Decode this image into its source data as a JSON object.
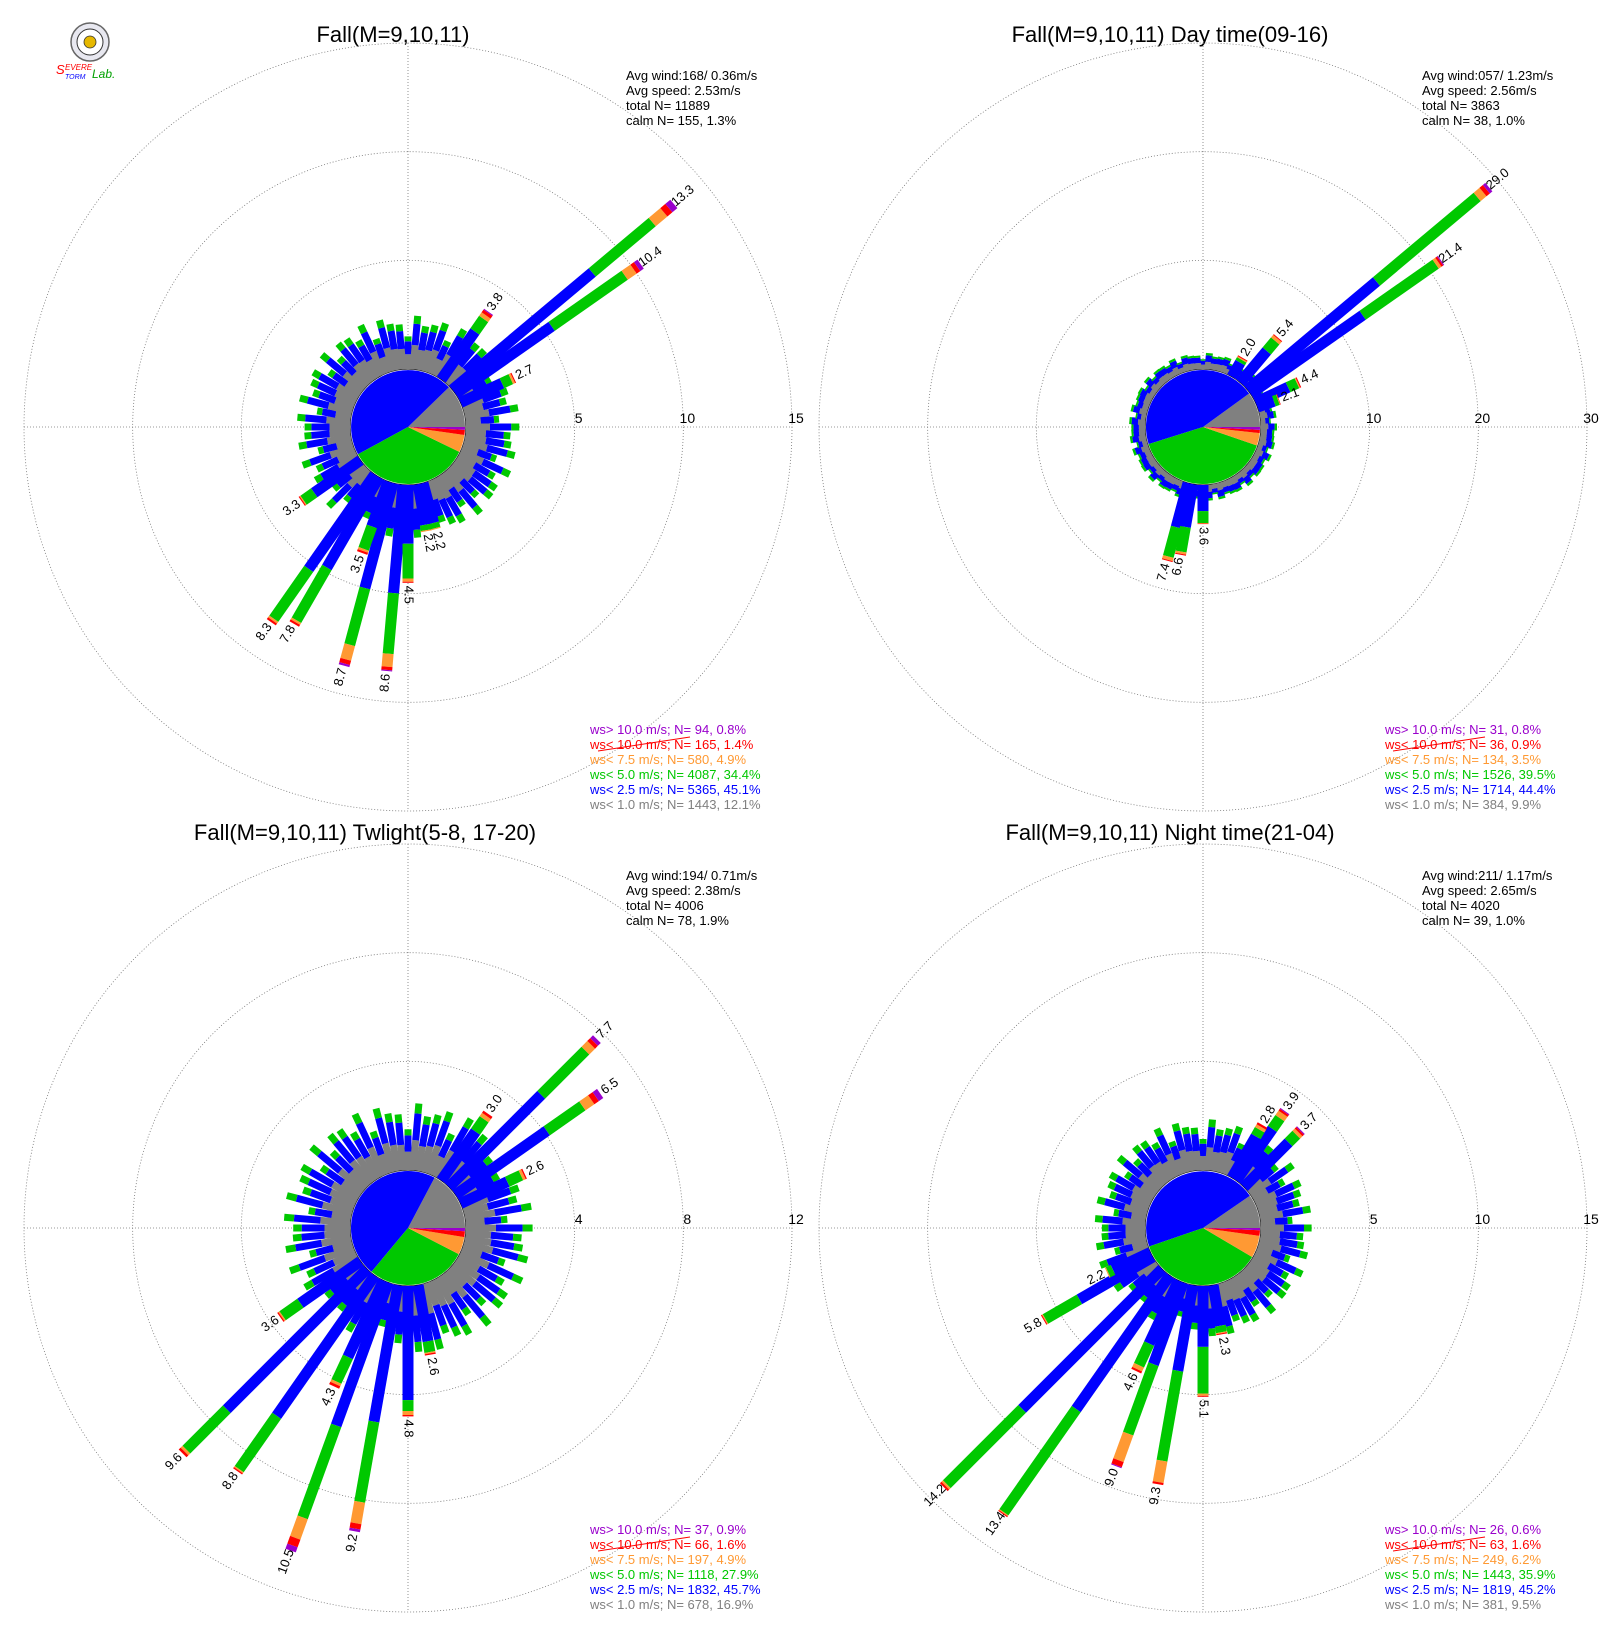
{
  "logo": {
    "text_top": "Severe",
    "text_bottom": "Storm",
    "text_lab": "Lab."
  },
  "colors": {
    "calm": "#808080",
    "b1": "#0000ff",
    "b2": "#00c800",
    "b3": "#ff9933",
    "b4": "#ff0000",
    "b5": "#9900cc",
    "grid": "#777777"
  },
  "chart_data": [
    {
      "type": "windrose",
      "title": "Fall(M=9,10,11)",
      "stats": [
        "Avg wind:168/ 0.36m/s",
        "Avg speed: 2.53m/s",
        "total N=      11889",
        "calm N=     155,   1.3%"
      ],
      "rings": [
        5,
        10,
        15
      ],
      "rmax": 15,
      "legend": [
        {
          "text": "ws> 10.0 m/s; N=    94,  0.8%",
          "color": "#9900cc"
        },
        {
          "text": "ws< 10.0 m/s; N=   165,  1.4%",
          "color": "#ff0000"
        },
        {
          "text": "ws<  7.5 m/s; N=   580,  4.9%",
          "color": "#ff9933"
        },
        {
          "text": "ws<  5.0 m/s; N= 4087, 34.4%",
          "color": "#00c800"
        },
        {
          "text": "ws<  2.5 m/s; N= 5365, 45.1%",
          "color": "#0000ff"
        },
        {
          "text": "ws<  1.0 m/s; N= 1443, 12.1%",
          "color": "#808080"
        }
      ],
      "calm_pie": [
        12.1,
        45.1,
        34.4,
        4.9,
        1.4,
        0.8
      ],
      "petals": [
        {
          "dir": 50,
          "value": 13.3,
          "label": "13.3",
          "b": [
            8.4,
            12.0,
            12.7,
            13.0
          ]
        },
        {
          "dir": 55,
          "value": 10.4,
          "label": "10.4",
          "b": [
            5.4,
            9.5,
            10.0,
            10.2
          ]
        },
        {
          "dir": 35,
          "value": 3.8,
          "label": "3.8",
          "b": [
            2.7,
            3.4,
            3.6,
            3.75
          ]
        },
        {
          "dir": 65,
          "value": 2.7,
          "label": "2.7",
          "b": [
            2.1,
            2.55,
            2.65,
            2.7
          ]
        },
        {
          "dir": 215,
          "value": 8.3,
          "label": "8.3",
          "b": [
            5.3,
            8.1,
            8.2,
            8.3
          ]
        },
        {
          "dir": 210,
          "value": 7.8,
          "label": "7.8",
          "b": [
            4.8,
            7.6,
            7.7,
            7.8
          ]
        },
        {
          "dir": 235,
          "value": 3.3,
          "label": "3.3",
          "b": [
            2.6,
            3.2,
            3.25,
            3.3
          ]
        },
        {
          "dir": 195,
          "value": 8.7,
          "label": "8.7",
          "b": [
            5.0,
            7.7,
            8.4,
            8.6
          ]
        },
        {
          "dir": 185,
          "value": 8.6,
          "label": "8.6",
          "b": [
            5.0,
            7.8,
            8.4,
            8.55
          ]
        },
        {
          "dir": 200,
          "value": 3.5,
          "label": "3.5",
          "b": [
            2.2,
            3.3,
            3.4,
            3.5
          ]
        },
        {
          "dir": 180,
          "value": 4.5,
          "label": "4.5",
          "b": [
            2.7,
            4.3,
            4.45,
            4.5
          ]
        },
        {
          "dir": 170,
          "value": 2.2,
          "label": "2.2",
          "b": [
            1.9,
            2.15,
            2.2,
            2.2
          ]
        },
        {
          "dir": 165,
          "value": 2.2,
          "label": "2.2",
          "b": [
            1.9,
            2.15,
            2.2,
            2.2
          ]
        }
      ],
      "background": 2.0
    },
    {
      "type": "windrose",
      "title": "Fall(M=9,10,11) Day time(09-16)",
      "stats": [
        "Avg wind:057/ 1.23m/s",
        "Avg speed: 2.56m/s",
        "total N=       3863",
        "calm N=      38,   1.0%"
      ],
      "rings": [
        10,
        20,
        30
      ],
      "rmax": 30,
      "legend": [
        {
          "text": "ws> 10.0 m/s; N=    31,  0.8%",
          "color": "#9900cc"
        },
        {
          "text": "ws< 10.0 m/s; N=    36,  0.9%",
          "color": "#ff0000"
        },
        {
          "text": "ws<  7.5 m/s; N=   134,  3.5%",
          "color": "#ff9933"
        },
        {
          "text": "ws<  5.0 m/s; N= 1526, 39.5%",
          "color": "#00c800"
        },
        {
          "text": "ws<  2.5 m/s; N= 1714, 44.4%",
          "color": "#0000ff"
        },
        {
          "text": "ws<  1.0 m/s; N=   384,  9.9%",
          "color": "#808080"
        }
      ],
      "calm_pie": [
        9.9,
        44.4,
        39.5,
        3.5,
        0.9,
        0.8
      ],
      "petals": [
        {
          "dir": 50,
          "value": 29.0,
          "label": "29.0",
          "b": [
            15.5,
            27.6,
            28.3,
            28.7
          ]
        },
        {
          "dir": 55,
          "value": 21.4,
          "label": "21.4",
          "b": [
            12.6,
            20.8,
            21.1,
            21.3
          ]
        },
        {
          "dir": 40,
          "value": 5.4,
          "label": "5.4",
          "b": [
            3.8,
            5.0,
            5.3,
            5.4
          ]
        },
        {
          "dir": 30,
          "value": 2.0,
          "label": "2.0",
          "b": [
            1.5,
            1.8,
            1.9,
            2.0
          ]
        },
        {
          "dir": 65,
          "value": 4.4,
          "label": "4.4",
          "b": [
            3.3,
            4.2,
            4.3,
            4.4
          ]
        },
        {
          "dir": 70,
          "value": 2.1,
          "label": "2.1",
          "b": [
            1.6,
            2.0,
            2.05,
            2.1
          ]
        },
        {
          "dir": 195,
          "value": 7.4,
          "label": "7.4",
          "b": [
            4.2,
            7.0,
            7.3,
            7.4
          ]
        },
        {
          "dir": 190,
          "value": 6.6,
          "label": "6.6",
          "b": [
            4.0,
            6.3,
            6.5,
            6.6
          ]
        },
        {
          "dir": 180,
          "value": 3.6,
          "label": "3.6",
          "b": [
            2.4,
            3.5,
            3.55,
            3.6
          ]
        }
      ],
      "background": 1.2
    },
    {
      "type": "windrose",
      "title": "Fall(M=9,10,11) Twlight(5-8, 17-20)",
      "stats": [
        "Avg wind:194/ 0.71m/s",
        "Avg speed: 2.38m/s",
        "total N=       4006",
        "calm N=      78,   1.9%"
      ],
      "rings": [
        4,
        8,
        12
      ],
      "rmax": 12,
      "legend": [
        {
          "text": "ws> 10.0 m/s; N=    37,  0.9%",
          "color": "#9900cc"
        },
        {
          "text": "ws< 10.0 m/s; N=    66,  1.6%",
          "color": "#ff0000"
        },
        {
          "text": "ws<  7.5 m/s; N=   197,  4.9%",
          "color": "#ff9933"
        },
        {
          "text": "ws<  5.0 m/s; N= 1118, 27.9%",
          "color": "#00c800"
        },
        {
          "text": "ws<  2.5 m/s; N= 1832, 45.7%",
          "color": "#0000ff"
        },
        {
          "text": "ws<  1.0 m/s; N=   678, 16.9%",
          "color": "#808080"
        }
      ],
      "calm_pie": [
        16.9,
        45.7,
        27.9,
        4.9,
        1.6,
        0.9
      ],
      "petals": [
        {
          "dir": 45,
          "value": 7.7,
          "label": "7.7",
          "b": [
            4.8,
            7.1,
            7.4,
            7.55
          ]
        },
        {
          "dir": 55,
          "value": 6.5,
          "label": "6.5",
          "b": [
            4.1,
            5.7,
            6.1,
            6.3
          ]
        },
        {
          "dir": 35,
          "value": 3.0,
          "label": "3.0",
          "b": [
            2.2,
            2.75,
            2.9,
            3.0
          ]
        },
        {
          "dir": 65,
          "value": 2.6,
          "label": "2.6",
          "b": [
            1.9,
            2.45,
            2.55,
            2.6
          ]
        },
        {
          "dir": 225,
          "value": 9.6,
          "label": "9.6",
          "b": [
            7.3,
            9.4,
            9.5,
            9.6
          ]
        },
        {
          "dir": 215,
          "value": 8.8,
          "label": "8.8",
          "b": [
            6.3,
            8.7,
            8.75,
            8.8
          ]
        },
        {
          "dir": 235,
          "value": 3.6,
          "label": "3.6",
          "b": [
            2.7,
            3.5,
            3.55,
            3.6
          ]
        },
        {
          "dir": 200,
          "value": 10.5,
          "label": "10.5",
          "b": [
            5.6,
            9.2,
            10.0,
            10.3
          ]
        },
        {
          "dir": 190,
          "value": 9.2,
          "label": "9.2",
          "b": [
            5.1,
            8.1,
            8.9,
            9.1
          ]
        },
        {
          "dir": 205,
          "value": 4.3,
          "label": "4.3",
          "b": [
            3.1,
            4.1,
            4.2,
            4.3
          ]
        },
        {
          "dir": 180,
          "value": 4.8,
          "label": "4.8",
          "b": [
            4.2,
            4.6,
            4.75,
            4.8
          ]
        },
        {
          "dir": 170,
          "value": 2.6,
          "label": "2.6",
          "b": [
            2.1,
            2.5,
            2.55,
            2.6
          ]
        }
      ],
      "background": 2.0
    },
    {
      "type": "windrose",
      "title": "Fall(M=9,10,11) Night time(21-04)",
      "stats": [
        "Avg wind:211/ 1.17m/s",
        "Avg speed: 2.65m/s",
        "total N=       4020",
        "calm N=      39,   1.0%"
      ],
      "rings": [
        5,
        10,
        15
      ],
      "rmax": 15,
      "legend": [
        {
          "text": "ws> 10.0 m/s; N=    26,  0.6%",
          "color": "#9900cc"
        },
        {
          "text": "ws< 10.0 m/s; N=    63,  1.6%",
          "color": "#ff0000"
        },
        {
          "text": "ws<  7.5 m/s; N=   249,  6.2%",
          "color": "#ff9933"
        },
        {
          "text": "ws<  5.0 m/s; N= 1443, 35.9%",
          "color": "#00c800"
        },
        {
          "text": "ws<  2.5 m/s; N= 1819, 45.2%",
          "color": "#0000ff"
        },
        {
          "text": "ws<  1.0 m/s; N=   381,  9.5%",
          "color": "#808080"
        }
      ],
      "calm_pie": [
        9.5,
        45.2,
        35.9,
        6.2,
        1.6,
        0.6
      ],
      "petals": [
        {
          "dir": 35,
          "value": 3.9,
          "label": "3.9",
          "b": [
            2.9,
            3.5,
            3.75,
            3.85
          ]
        },
        {
          "dir": 30,
          "value": 2.8,
          "label": "2.8",
          "b": [
            2.2,
            2.55,
            2.7,
            2.8
          ]
        },
        {
          "dir": 45,
          "value": 3.7,
          "label": "3.7",
          "b": [
            2.9,
            3.4,
            3.55,
            3.65
          ]
        },
        {
          "dir": 225,
          "value": 14.2,
          "label": "14.2",
          "b": [
            9.1,
            14.0,
            14.1,
            14.2
          ]
        },
        {
          "dir": 215,
          "value": 13.4,
          "label": "13.4",
          "b": [
            7.5,
            13.3,
            13.35,
            13.4
          ]
        },
        {
          "dir": 240,
          "value": 5.8,
          "label": "5.8",
          "b": [
            3.9,
            5.7,
            5.75,
            5.8
          ]
        },
        {
          "dir": 245,
          "value": 2.2,
          "label": "2.2",
          "b": [
            1.9,
            2.15,
            2.2,
            2.2
          ]
        },
        {
          "dir": 200,
          "value": 9.0,
          "label": "9.0",
          "b": [
            4.0,
            7.4,
            8.7,
            8.95
          ]
        },
        {
          "dir": 190,
          "value": 9.3,
          "label": "9.3",
          "b": [
            4.0,
            8.2,
            9.2,
            9.3
          ]
        },
        {
          "dir": 205,
          "value": 4.6,
          "label": "4.6",
          "b": [
            3.2,
            4.3,
            4.5,
            4.6
          ]
        },
        {
          "dir": 180,
          "value": 5.1,
          "label": "5.1",
          "b": [
            2.8,
            4.95,
            5.05,
            5.1
          ]
        },
        {
          "dir": 170,
          "value": 2.3,
          "label": "2.3",
          "b": [
            1.9,
            2.2,
            2.25,
            2.3
          ]
        }
      ],
      "background": 1.9
    }
  ]
}
